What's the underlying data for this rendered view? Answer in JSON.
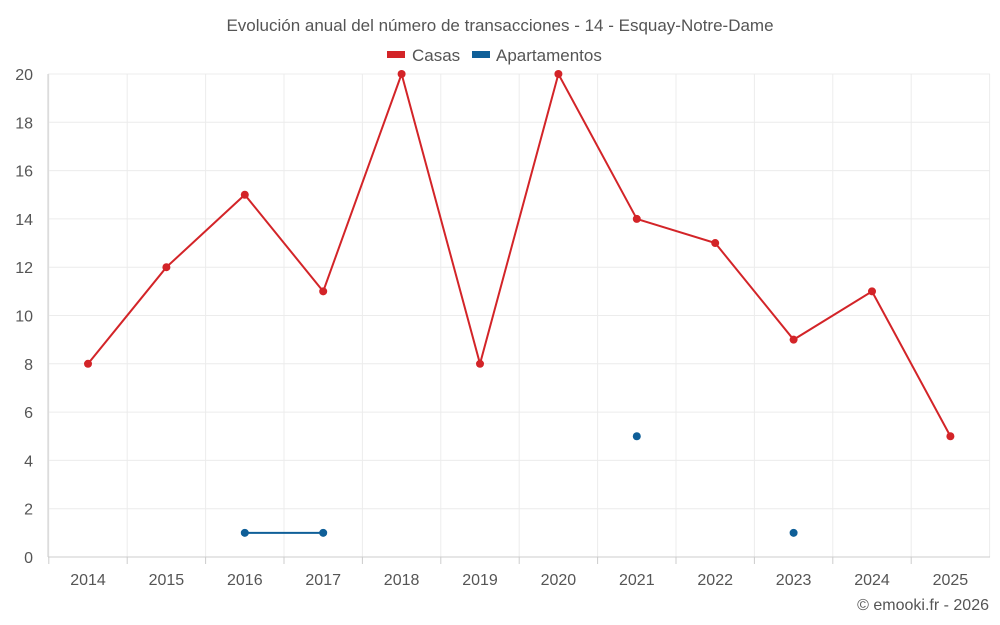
{
  "chart_data": {
    "type": "line",
    "title": "Evolución anual del número de transacciones - 14 - Esquay-Notre-Dame",
    "categories": [
      "2014",
      "2015",
      "2016",
      "2017",
      "2018",
      "2019",
      "2020",
      "2021",
      "2022",
      "2023",
      "2024",
      "2025"
    ],
    "y_ticks": [
      "0",
      "2",
      "4",
      "6",
      "8",
      "10",
      "12",
      "14",
      "16",
      "18",
      "20"
    ],
    "ylim": [
      0,
      20
    ],
    "grid": true,
    "legend_position": "top-center",
    "series": [
      {
        "name": "Casas",
        "color": "#d32428",
        "values": [
          8,
          12,
          15,
          11,
          20,
          8,
          20,
          14,
          13,
          9,
          11,
          5
        ]
      },
      {
        "name": "Apartamentos",
        "color": "#0f5f98",
        "values": [
          null,
          null,
          1,
          1,
          null,
          null,
          null,
          5,
          null,
          1,
          null,
          null
        ]
      }
    ],
    "credit": "© emooki.fr - 2026"
  }
}
